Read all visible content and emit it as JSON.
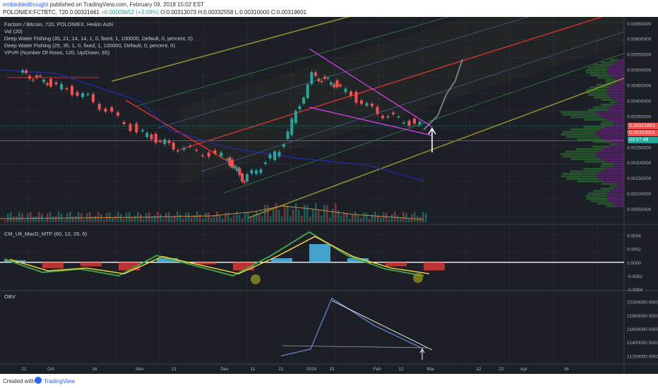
{
  "header": {
    "author": "embeddedthought",
    "published": " published on TradingView.com, February 09, 2018 15:02 EST",
    "symbol": "POLONIEX:FCTBTC, 720",
    "last": "0.00321661",
    "change": "+0.00009652 (+3.09%)",
    "ohlc": "O:0.00313073 H:0.00332558 L:0.00310000 C:0.00319601"
  },
  "legend": {
    "title": "Factom / Bitcoin, 720, POLONIEX, Heikin Ashi",
    "vol": "Vol (20)",
    "dwf1": "Deep Water Fishing (35, 21, 14, 14, 1, 0, fixed, 1, 100000, Default, 0, percent, 0)",
    "dwf2": "Deep Water Fishing (25, 35, 1, 0, fixed, 1, 100000, Default, 0, percent, 0)",
    "vpvr": "VPVR (Number Of Rows, 120, Up/Down, 65)",
    "macd": "CM_Ult_MacD_MTF (60, 12, 26, 9)",
    "obv": "OBV"
  },
  "price_axis": {
    "ticks": [
      "0.00650000",
      "0.00600000",
      "0.00550000",
      "0.00500000",
      "0.00450000",
      "0.00400000",
      "0.00350000",
      "0.00300000",
      "0.00250000",
      "0.00200000",
      "0.00150000",
      "0.00100000",
      "0.00050000"
    ],
    "tag_last": "0.00321661",
    "tag_close": "0.00319601",
    "tag_time": "03:57:48"
  },
  "macd_axis": {
    "ticks": [
      "0.0004",
      "0.0002",
      "0.0000",
      "-0.0002",
      "-0.0004"
    ]
  },
  "obv_axis": {
    "ticks": [
      "22000000.0000",
      "21800000.0000",
      "21600000.0000",
      "21400000.0000",
      "21200000.0000"
    ]
  },
  "time_axis": {
    "ticks": [
      "21",
      "Oct",
      "16",
      "Nov",
      "13",
      "Dec",
      "11",
      "21",
      "2018",
      "15",
      "Feb",
      "12",
      "Mar",
      "12",
      "22",
      "Apr",
      "16"
    ]
  },
  "footer": {
    "created": "Created with",
    "brand": "TradingView"
  },
  "colors": {
    "background": "#1c1f26",
    "up": "#26a69a",
    "down": "#ef5350",
    "red_line": "#d32f2f",
    "channel_outer": "#9e9d24",
    "triangle": "#e040fb",
    "obv": "#5b7fbf"
  },
  "chart_data": [
    {
      "type": "candlestick",
      "title": "Factom / Bitcoin, 720, POLONIEX, Heikin Ashi",
      "x": [
        "21",
        "Oct",
        "16",
        "Nov",
        "13",
        "Dec",
        "11",
        "21",
        "2018",
        "15",
        "Feb",
        "12"
      ],
      "close": [
        0.0049,
        0.0046,
        0.0041,
        0.003,
        0.0025,
        0.0022,
        0.0014,
        0.0024,
        0.0048,
        0.0045,
        0.0036,
        0.0032
      ],
      "ylim": [
        0.0,
        0.0067
      ],
      "annotations": [
        "ascending channel",
        "descending triangle",
        "horizontal support 0.00270",
        "arrow up at apex"
      ]
    },
    {
      "type": "line",
      "title": "CM_Ult_MacD_MTF (60, 12, 26, 9)",
      "x": [
        "21",
        "Oct",
        "16",
        "Nov",
        "13",
        "Dec",
        "11",
        "21",
        "2018",
        "15",
        "Feb",
        "12"
      ],
      "series": [
        {
          "name": "",
          "values": [
            5e-05,
            -0.00015,
            -0.0001,
            -0.0002,
            0.0001,
            -5e-05,
            -0.0002,
            0.0001,
            0.00045,
            0.0001,
            -0.0001,
            -0.0002
          ]
        }
      ],
      "ylim": [
        -0.0004,
        0.0005
      ]
    },
    {
      "type": "line",
      "title": "OBV",
      "x": [
        "21",
        "2018",
        "15",
        "Feb",
        "12"
      ],
      "series": [
        {
          "name": "",
          "values": [
            21200000,
            21300000,
            22050000,
            21650000,
            21300000
          ]
        }
      ],
      "ylim": [
        21100000,
        22100000
      ]
    }
  ]
}
